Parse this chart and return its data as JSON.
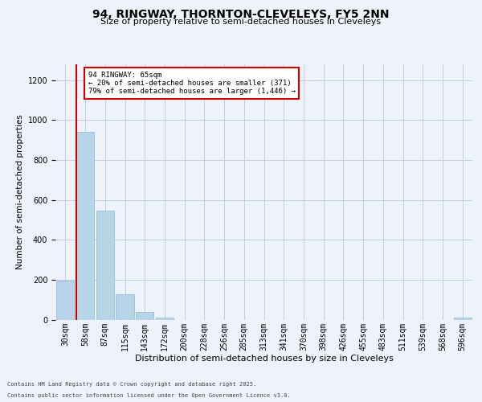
{
  "title1": "94, RINGWAY, THORNTON-CLEVELEYS, FY5 2NN",
  "title2": "Size of property relative to semi-detached houses in Cleveleys",
  "xlabel": "Distribution of semi-detached houses by size in Cleveleys",
  "ylabel": "Number of semi-detached properties",
  "categories": [
    "30sqm",
    "58sqm",
    "87sqm",
    "115sqm",
    "143sqm",
    "172sqm",
    "200sqm",
    "228sqm",
    "256sqm",
    "285sqm",
    "313sqm",
    "341sqm",
    "370sqm",
    "398sqm",
    "426sqm",
    "455sqm",
    "483sqm",
    "511sqm",
    "539sqm",
    "568sqm",
    "596sqm"
  ],
  "values": [
    197,
    940,
    545,
    127,
    37,
    12,
    0,
    0,
    0,
    0,
    0,
    0,
    0,
    0,
    0,
    0,
    0,
    0,
    0,
    0,
    10
  ],
  "bar_color": "#b8d4e8",
  "bar_edge_color": "#90b8d0",
  "red_line_bar_index": 1,
  "red_line_color": "#cc0000",
  "annotation_title": "94 RINGWAY: 65sqm",
  "annotation_line1": "← 20% of semi-detached houses are smaller (371)",
  "annotation_line2": "79% of semi-detached houses are larger (1,446) →",
  "annotation_box_facecolor": "#ffffff",
  "annotation_box_edgecolor": "#cc0000",
  "ylim": [
    0,
    1280
  ],
  "yticks": [
    0,
    200,
    400,
    600,
    800,
    1000,
    1200
  ],
  "footer1": "Contains HM Land Registry data © Crown copyright and database right 2025.",
  "footer2": "Contains public sector information licensed under the Open Government Licence v3.0.",
  "bg_color": "#eef2fa",
  "grid_color": "#c5cede",
  "title1_fontsize": 10,
  "title2_fontsize": 8,
  "ylabel_fontsize": 7.5,
  "xlabel_fontsize": 8,
  "tick_fontsize": 7,
  "ann_fontsize": 6.5,
  "footer_fontsize": 5
}
